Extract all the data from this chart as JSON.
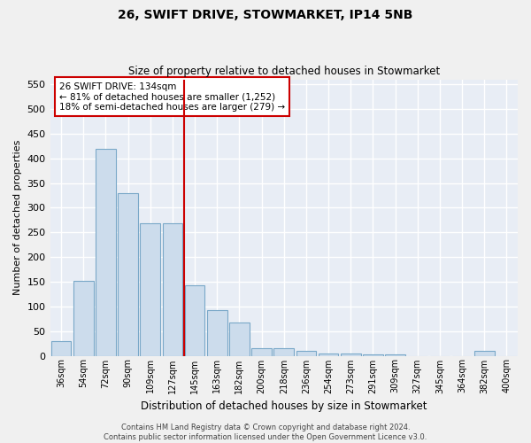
{
  "title1": "26, SWIFT DRIVE, STOWMARKET, IP14 5NB",
  "title2": "Size of property relative to detached houses in Stowmarket",
  "xlabel": "Distribution of detached houses by size in Stowmarket",
  "ylabel": "Number of detached properties",
  "categories": [
    "36sqm",
    "54sqm",
    "72sqm",
    "90sqm",
    "109sqm",
    "127sqm",
    "145sqm",
    "163sqm",
    "182sqm",
    "200sqm",
    "218sqm",
    "236sqm",
    "254sqm",
    "273sqm",
    "291sqm",
    "309sqm",
    "327sqm",
    "345sqm",
    "364sqm",
    "382sqm",
    "400sqm"
  ],
  "values": [
    30,
    152,
    420,
    330,
    268,
    268,
    143,
    93,
    68,
    15,
    15,
    10,
    5,
    5,
    3,
    3,
    0,
    0,
    0,
    10,
    0
  ],
  "bar_color": "#ccdcec",
  "bar_edge_color": "#7aa8c8",
  "bg_color": "#e8edf5",
  "grid_color": "#ffffff",
  "red_line_color": "#cc0000",
  "red_line_x": 5.5,
  "annotation_text": "26 SWIFT DRIVE: 134sqm\n← 81% of detached houses are smaller (1,252)\n18% of semi-detached houses are larger (279) →",
  "annotation_box_color": "#ffffff",
  "annotation_box_edge": "#cc0000",
  "ylim": [
    0,
    560
  ],
  "yticks": [
    0,
    50,
    100,
    150,
    200,
    250,
    300,
    350,
    400,
    450,
    500,
    550
  ],
  "footer1": "Contains HM Land Registry data © Crown copyright and database right 2024.",
  "footer2": "Contains public sector information licensed under the Open Government Licence v3.0."
}
